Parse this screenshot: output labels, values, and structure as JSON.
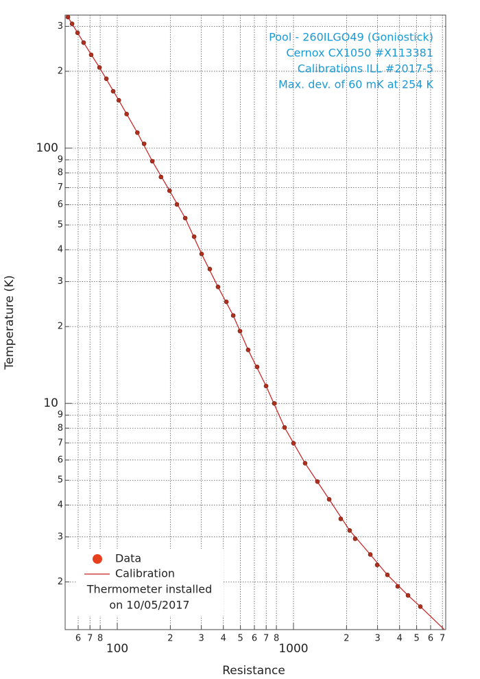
{
  "chart_data": {
    "type": "line",
    "x_label": "Resistance",
    "y_label": "Temperature (K)",
    "annotation": [
      "Pool - 260ILGO49 (Goniostick)",
      "Cernox CX1050 #X113381",
      "Calibrations ILL #2017-5",
      "Max. dev. of 60 mK at 254 K"
    ],
    "note": [
      "Thermometer installed",
      "on 10/05/2017"
    ],
    "xscale": "log",
    "yscale": "log",
    "grid": true,
    "legend": "lower left",
    "xlim": [
      50.6,
      7310
    ],
    "ylim": [
      1.3,
      332
    ],
    "xticks": [
      {
        "value": 60,
        "label": "6"
      },
      {
        "value": 70,
        "label": "7"
      },
      {
        "value": 80,
        "label": "8"
      },
      100,
      {
        "value": 200,
        "label": "2"
      },
      {
        "value": 300,
        "label": "3"
      },
      {
        "value": 400,
        "label": "4"
      },
      {
        "value": 500,
        "label": "5"
      },
      {
        "value": 600,
        "label": "6"
      },
      {
        "value": 700,
        "label": "7"
      },
      {
        "value": 800,
        "label": "8"
      },
      1000,
      {
        "value": 2000,
        "label": "2"
      },
      {
        "value": 3000,
        "label": "3"
      },
      {
        "value": 4000,
        "label": "4"
      },
      {
        "value": 5000,
        "label": "5"
      },
      {
        "value": 6000,
        "label": "6"
      },
      {
        "value": 7000,
        "label": "7"
      }
    ],
    "yticks": [
      {
        "value": 2,
        "label": "2"
      },
      {
        "value": 3,
        "label": "3"
      },
      {
        "value": 4,
        "label": "4"
      },
      {
        "value": 5,
        "label": "5"
      },
      {
        "value": 6,
        "label": "6"
      },
      {
        "value": 7,
        "label": "7"
      },
      {
        "value": 8,
        "label": "8"
      },
      {
        "value": 9,
        "label": "9"
      },
      10,
      {
        "value": 20,
        "label": "2"
      },
      {
        "value": 30,
        "label": "3"
      },
      {
        "value": 40,
        "label": "4"
      },
      {
        "value": 50,
        "label": "5"
      },
      {
        "value": 60,
        "label": "6"
      },
      {
        "value": 70,
        "label": "7"
      },
      {
        "value": 80,
        "label": "8"
      },
      {
        "value": 90,
        "label": "9"
      },
      100,
      {
        "value": 200,
        "label": "2"
      },
      {
        "value": 300,
        "label": "3"
      }
    ],
    "series": [
      {
        "name": "Data",
        "style": "markers",
        "color": "#e8401c",
        "x": [
          52.5,
          55.4,
          59.5,
          64.4,
          71.1,
          79.3,
          86.7,
          94.8,
          102,
          113,
          130,
          142,
          158,
          177,
          198,
          218,
          243,
          273,
          301,
          335,
          373,
          416,
          455,
          497,
          553,
          622,
          699,
          778,
          890,
          1000,
          1164,
          1368,
          1594,
          1855,
          2084,
          2239,
          2729,
          2985,
          3412,
          3902,
          4467,
          5248
        ],
        "values": [
          326,
          307,
          283,
          259,
          232,
          207,
          187,
          167,
          154,
          136,
          115,
          104,
          88.9,
          77.1,
          68.1,
          60.2,
          53.2,
          45.0,
          38.5,
          33.6,
          28.6,
          25.0,
          22.1,
          19.2,
          16.2,
          13.9,
          11.7,
          10.0,
          8.05,
          6.98,
          5.83,
          4.94,
          4.21,
          3.53,
          3.18,
          2.95,
          2.56,
          2.33,
          2.13,
          1.92,
          1.77,
          1.6
        ]
      },
      {
        "name": "Calibration",
        "style": "line",
        "color": "#cc1a1a",
        "x": [
          52.5,
          64.4,
          79.3,
          102,
          130,
          158,
          198,
          243,
          301,
          373,
          455,
          553,
          699,
          890,
          1164,
          1594,
          2084,
          2729,
          3412,
          4467,
          5248,
          7178
        ],
        "values": [
          326,
          259,
          207,
          154,
          115,
          88.9,
          68.1,
          53.2,
          38.5,
          28.6,
          22.1,
          16.2,
          11.7,
          8.05,
          5.83,
          4.21,
          3.18,
          2.56,
          2.13,
          1.77,
          1.6,
          1.3
        ]
      }
    ]
  }
}
